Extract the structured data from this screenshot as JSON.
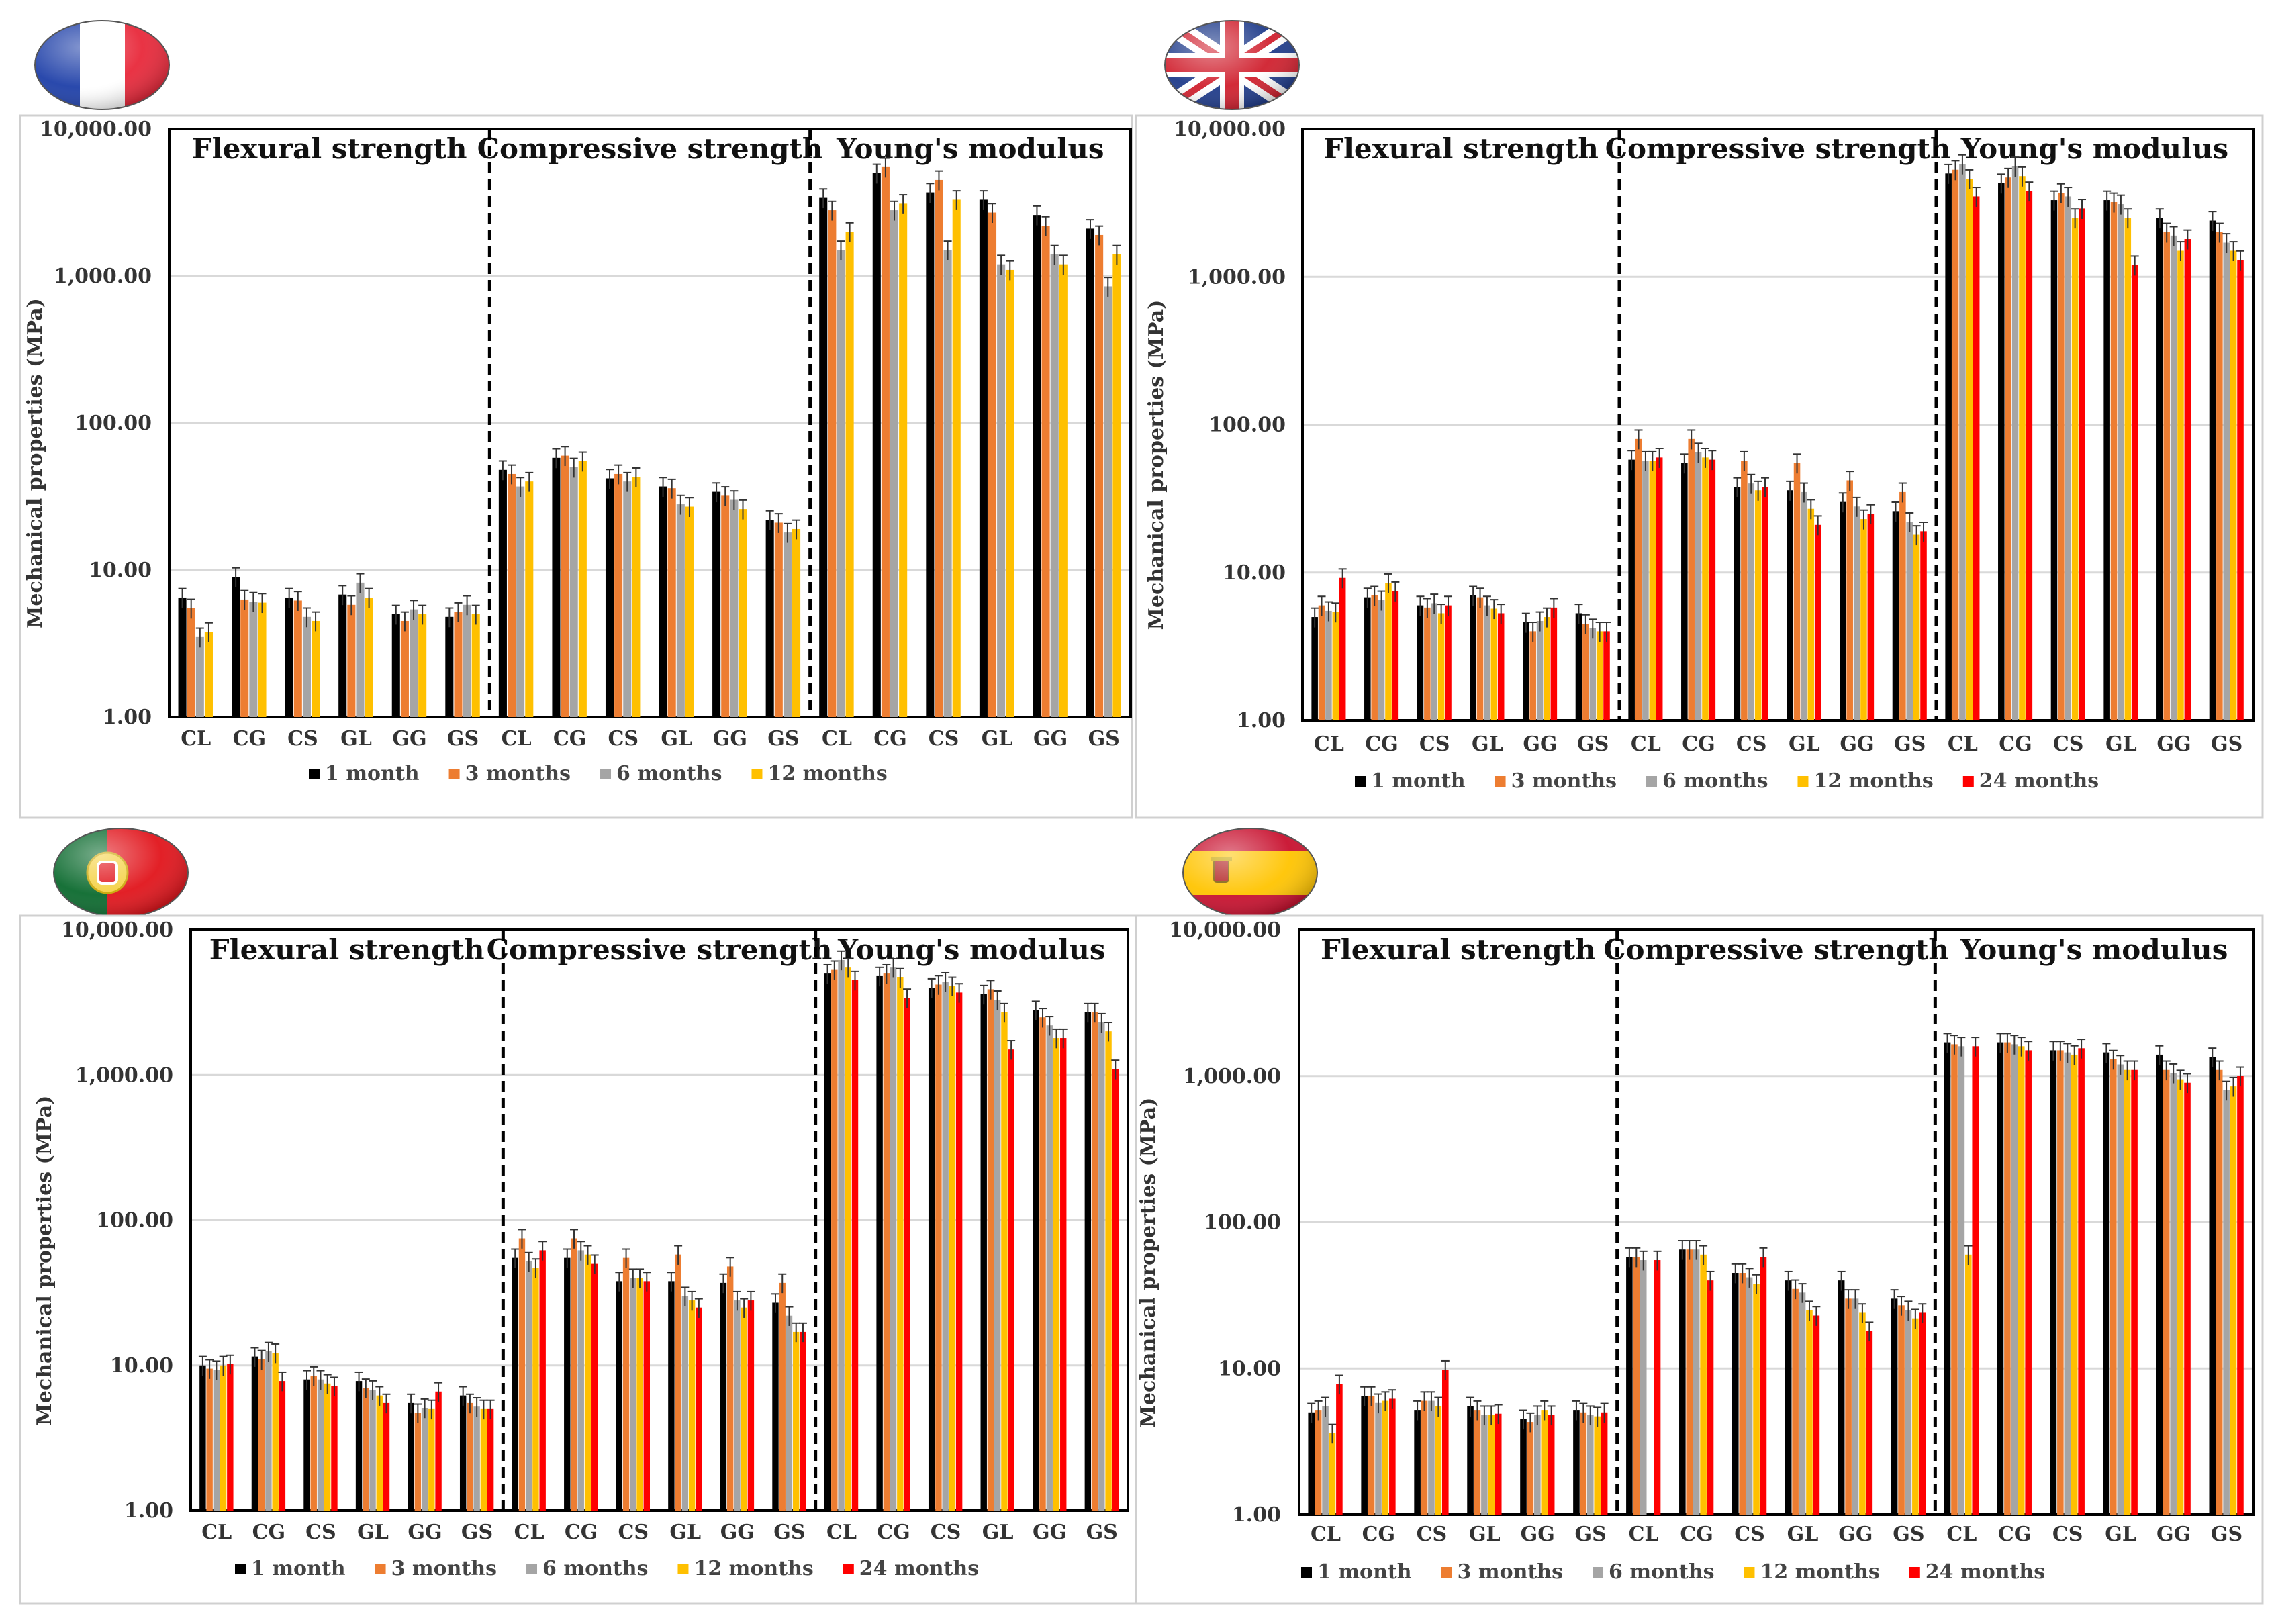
{
  "scale": "log",
  "ylabel": "Mechanical properties (MPa)",
  "y_ticks": [
    "1.00",
    "10.00",
    "100.00",
    "1,000.00",
    "10,000.00"
  ],
  "sections": [
    "Flexural strength",
    "Compressive strength",
    "Young's modulus"
  ],
  "categories": [
    "CL",
    "CG",
    "CS",
    "GL",
    "GG",
    "GS"
  ],
  "series_names": [
    "1 month",
    "3 months",
    "6 months",
    "12 months",
    "24 months"
  ],
  "series_colors": [
    "#000000",
    "#ED7D31",
    "#A5A5A5",
    "#FFC000",
    "#FF0000"
  ],
  "flags": [
    "france-flag-icon",
    "uk-flag-icon",
    "portugal-flag-icon",
    "spain-flag-icon"
  ],
  "chart_data": [
    {
      "type": "bar",
      "title": "",
      "ylabel": "Mechanical properties (MPa)",
      "scale": "log",
      "ylim": [
        1,
        10000
      ],
      "categories": [
        "CL",
        "CG",
        "CS",
        "GL",
        "GG",
        "GS"
      ],
      "groups": [
        "Flexural strength",
        "Compressive strength",
        "Young's modulus"
      ],
      "series": [
        {
          "name": "1 month",
          "values": [
            [
              6.5,
              9,
              6.5,
              6.8,
              5,
              4.8
            ],
            [
              48,
              58,
              42,
              37,
              34,
              22
            ],
            [
              3400,
              5000,
              3700,
              3300,
              2600,
              2100
            ]
          ]
        },
        {
          "name": "3 months",
          "values": [
            [
              5.5,
              6.3,
              6.2,
              5.8,
              4.5,
              5.2
            ],
            [
              45,
              60,
              45,
              36,
              32,
              21
            ],
            [
              2800,
              5500,
              4500,
              2700,
              2200,
              1900
            ]
          ]
        },
        {
          "name": "6 months",
          "values": [
            [
              3.5,
              6.1,
              4.8,
              8.2,
              5.4,
              5.8
            ],
            [
              37,
              50,
              40,
              28,
              30,
              18
            ],
            [
              1500,
              2800,
              1500,
              1200,
              1400,
              850
            ]
          ]
        },
        {
          "name": "12 months",
          "values": [
            [
              3.8,
              6,
              4.5,
              6.5,
              5,
              5
            ],
            [
              40,
              55,
              43,
              27,
              26,
              19
            ],
            [
              2000,
              3100,
              3300,
              1100,
              1200,
              1400
            ]
          ]
        }
      ]
    },
    {
      "type": "bar",
      "title": "",
      "ylabel": "Mechanical properties (MPa)",
      "scale": "log",
      "ylim": [
        1,
        10000
      ],
      "categories": [
        "CL",
        "CG",
        "CS",
        "GL",
        "GG",
        "GS"
      ],
      "groups": [
        "Flexural strength",
        "Compressive strength",
        "Young's modulus"
      ],
      "series": [
        {
          "name": "1 month",
          "values": [
            [
              5,
              6.8,
              6,
              7,
              4.6,
              5.3
            ],
            [
              58,
              55,
              38,
              36,
              30,
              26
            ],
            [
              5000,
              4300,
              3300,
              3300,
              2500,
              2400
            ]
          ]
        },
        {
          "name": "3 months",
          "values": [
            [
              6,
              7,
              5.8,
              6.8,
              4,
              4.5
            ],
            [
              80,
              80,
              57,
              55,
              42,
              35
            ],
            [
              5300,
              4700,
              3700,
              3200,
              2000,
              2000
            ]
          ]
        },
        {
          "name": "6 months",
          "values": [
            [
              5.5,
              6.5,
              6.2,
              6,
              4.7,
              4.2
            ],
            [
              57,
              65,
              40,
              35,
              28,
              22
            ],
            [
              5800,
              5600,
              3500,
              3100,
              1900,
              1700
            ]
          ]
        },
        {
          "name": "12 months",
          "values": [
            [
              5.4,
              8.5,
              5.3,
              5.7,
              5,
              4
            ],
            [
              57,
              60,
              36,
              27,
              23,
              18
            ],
            [
              4600,
              4800,
              2500,
              2500,
              1500,
              1500
            ]
          ]
        },
        {
          "name": "24 months",
          "values": [
            [
              9.2,
              7.5,
              6,
              5.3,
              5.8,
              4
            ],
            [
              60,
              58,
              38,
              21,
              25,
              19
            ],
            [
              3500,
              3800,
              2900,
              1200,
              1800,
              1300
            ]
          ]
        }
      ]
    },
    {
      "type": "bar",
      "title": "",
      "ylabel": "Mechanical properties (MPa)",
      "scale": "log",
      "ylim": [
        1,
        10000
      ],
      "categories": [
        "CL",
        "CG",
        "CS",
        "GL",
        "GG",
        "GS"
      ],
      "groups": [
        "Flexural strength",
        "Compressive strength",
        "Young's modulus"
      ],
      "series": [
        {
          "name": "1 month",
          "values": [
            [
              10,
              11.5,
              8,
              7.8,
              5.5,
              6.2
            ],
            [
              55,
              55,
              38,
              38,
              37,
              27
            ],
            [
              5000,
              4800,
              4000,
              3600,
              2800,
              2700
            ]
          ]
        },
        {
          "name": "3 months",
          "values": [
            [
              9.5,
              11,
              8.5,
              7,
              4.7,
              5.5
            ],
            [
              75,
              75,
              55,
              58,
              48,
              37
            ],
            [
              5300,
              5000,
              4200,
              3900,
              2500,
              2700
            ]
          ]
        },
        {
          "name": "6 months",
          "values": [
            [
              9.3,
              12.5,
              8,
              6.8,
              5.1,
              5.2
            ],
            [
              52,
              62,
              40,
              30,
              28,
              22
            ],
            [
              6200,
              5500,
              4400,
              3300,
              2200,
              2300
            ]
          ]
        },
        {
          "name": "12 months",
          "values": [
            [
              10,
              12.2,
              7.5,
              6.2,
              5,
              5
            ],
            [
              47,
              58,
              40,
              28,
              25,
              17
            ],
            [
              5500,
              4700,
              4100,
              2700,
              1800,
              2000
            ]
          ]
        },
        {
          "name": "24 months",
          "values": [
            [
              10.2,
              7.8,
              7.2,
              5.5,
              6.6,
              5
            ],
            [
              62,
              50,
              38,
              25,
              28,
              17
            ],
            [
              4500,
              3400,
              3700,
              1500,
              1800,
              1100
            ]
          ]
        }
      ]
    },
    {
      "type": "bar",
      "title": "",
      "ylabel": "Mechanical properties (MPa)",
      "scale": "log",
      "ylim": [
        1,
        10000
      ],
      "categories": [
        "CL",
        "CG",
        "CS",
        "GL",
        "GG",
        "GS"
      ],
      "groups": [
        "Flexural strength",
        "Compressive strength",
        "Young's modulus"
      ],
      "series": [
        {
          "name": "1 month",
          "values": [
            [
              5,
              6.5,
              5.2,
              5.5,
              4.5,
              5.2
            ],
            [
              58,
              65,
              45,
              40,
              40,
              30
            ],
            [
              1700,
              1700,
              1500,
              1450,
              1400,
              1350
            ]
          ]
        },
        {
          "name": "3 months",
          "values": [
            [
              5.2,
              6.5,
              6,
              5.2,
              4.3,
              5
            ],
            [
              58,
              65,
              45,
              35,
              30,
              27
            ],
            [
              1650,
              1700,
              1500,
              1300,
              1100,
              1100
            ]
          ]
        },
        {
          "name": "6 months",
          "values": [
            [
              5.5,
              5.8,
              6,
              4.8,
              4.8,
              4.8
            ],
            [
              55,
              65,
              42,
              33,
              30,
              25
            ],
            [
              1600,
              1650,
              1450,
              1200,
              1050,
              800
            ]
          ]
        },
        {
          "name": "12 months",
          "values": [
            [
              3.6,
              6,
              5.5,
              4.8,
              5.2,
              4.7
            ],
            [
              0,
              60,
              38,
              25,
              24,
              22
            ],
            [
              60,
              1600,
              1400,
              1100,
              950,
              850
            ]
          ]
        },
        {
          "name": "24 months",
          "values": [
            [
              7.8,
              6.2,
              9.8,
              4.9,
              4.8,
              5
            ],
            [
              55,
              40,
              58,
              23,
              18,
              24
            ],
            [
              1600,
              1500,
              1550,
              1100,
              900,
              1000
            ]
          ]
        }
      ]
    }
  ]
}
